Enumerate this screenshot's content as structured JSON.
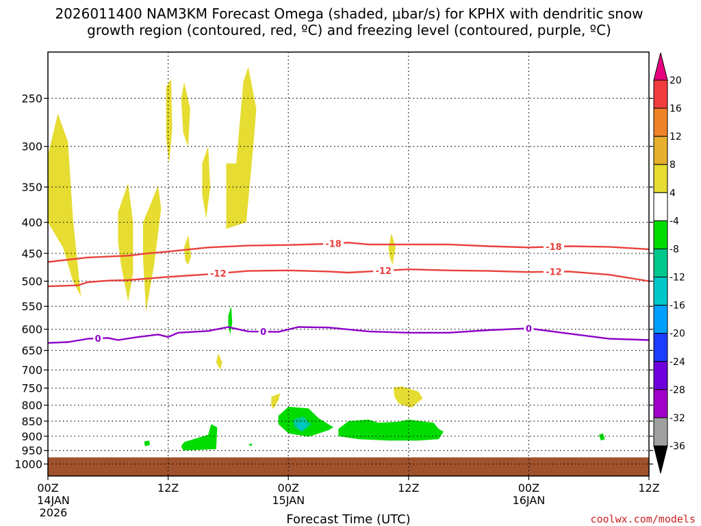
{
  "chart_data": {
    "type": "heatmap",
    "title_lines": [
      "2026011400 NAM3KM Forecast Omega (shaded, μbar/s) for KPHX with dendritic snow",
      "growth region (contoured, red, ºC) and freezing level (contoured, purple, ºC)"
    ],
    "xlabel": "Forecast Time (UTC)",
    "ylabel": "",
    "credit": "coolwx.com/models",
    "x_range_hours": [
      0,
      60
    ],
    "y_levels_hpa": [
      250,
      300,
      350,
      400,
      450,
      500,
      550,
      600,
      650,
      700,
      750,
      800,
      850,
      900,
      950,
      1000
    ],
    "y_axis": "log-pressure",
    "x_ticks": [
      {
        "hour": 0,
        "lines": [
          "00Z",
          "14JAN",
          "2026"
        ]
      },
      {
        "hour": 12,
        "lines": [
          "12Z"
        ]
      },
      {
        "hour": 24,
        "lines": [
          "00Z",
          "15JAN"
        ]
      },
      {
        "hour": 36,
        "lines": [
          "12Z"
        ]
      },
      {
        "hour": 48,
        "lines": [
          "00Z",
          "16JAN"
        ]
      },
      {
        "hour": 60,
        "lines": [
          "12Z"
        ]
      }
    ],
    "grid": true,
    "colorbar": {
      "labels": [
        "20",
        "16",
        "12",
        "8",
        "4",
        "-4",
        "-8",
        "-12",
        "-16",
        "-20",
        "-24",
        "-28",
        "-32",
        "-36"
      ],
      "bins": [
        {
          "from": 16,
          "to": 20,
          "color": "#f03c3c"
        },
        {
          "from": 12,
          "to": 16,
          "color": "#f08228"
        },
        {
          "from": 8,
          "to": 12,
          "color": "#e6af2d"
        },
        {
          "from": 4,
          "to": 8,
          "color": "#e6dc32"
        },
        {
          "from": -4,
          "to": 4,
          "color": "#ffffff"
        },
        {
          "from": -8,
          "to": -4,
          "color": "#00dc00"
        },
        {
          "from": -12,
          "to": -8,
          "color": "#00c88c"
        },
        {
          "from": -16,
          "to": -12,
          "color": "#00c8c8"
        },
        {
          "from": -20,
          "to": -16,
          "color": "#00a0ff"
        },
        {
          "from": -24,
          "to": -20,
          "color": "#1e3cff"
        },
        {
          "from": -28,
          "to": -24,
          "color": "#6e00dc"
        },
        {
          "from": -32,
          "to": -28,
          "color": "#a000c8"
        },
        {
          "from": -36,
          "to": -32,
          "color": "#a0a0a0"
        }
      ],
      "over_color": "#e6007d",
      "under_color": "#000000"
    },
    "ground_color": "#a0522d",
    "ground_top_hpa": 975,
    "contours": [
      {
        "label": "-18",
        "color": "#e8413c",
        "points": [
          [
            0,
            465
          ],
          [
            4,
            457
          ],
          [
            8,
            454
          ],
          [
            10,
            450
          ],
          [
            12,
            447
          ],
          [
            16,
            440
          ],
          [
            20,
            437
          ],
          [
            24,
            436
          ],
          [
            28,
            434
          ],
          [
            30,
            432
          ],
          [
            32,
            435
          ],
          [
            36,
            435
          ],
          [
            40,
            435
          ],
          [
            44,
            438
          ],
          [
            48,
            440
          ],
          [
            52,
            438
          ],
          [
            56,
            439
          ],
          [
            60,
            443
          ]
        ],
        "label_hours": [
          28.5,
          50.5
        ]
      },
      {
        "label": "-12",
        "color": "#e8413c",
        "points": [
          [
            0,
            510
          ],
          [
            3,
            508
          ],
          [
            4,
            502
          ],
          [
            6,
            499
          ],
          [
            8,
            498
          ],
          [
            12,
            492
          ],
          [
            16,
            487
          ],
          [
            20,
            481
          ],
          [
            24,
            480
          ],
          [
            28,
            482
          ],
          [
            30,
            484
          ],
          [
            32,
            482
          ],
          [
            36,
            478
          ],
          [
            40,
            480
          ],
          [
            44,
            481
          ],
          [
            48,
            483
          ],
          [
            52,
            482
          ],
          [
            56,
            488
          ],
          [
            60,
            500
          ]
        ],
        "label_hours": [
          17,
          33.5,
          50.5
        ]
      },
      {
        "label": "0",
        "color": "#8c00c8",
        "points": [
          [
            0,
            632
          ],
          [
            2,
            630
          ],
          [
            4,
            622
          ],
          [
            6,
            620
          ],
          [
            7,
            625
          ],
          [
            9,
            618
          ],
          [
            11,
            612
          ],
          [
            12,
            618
          ],
          [
            13,
            608
          ],
          [
            16,
            604
          ],
          [
            18,
            595
          ],
          [
            20,
            605
          ],
          [
            23,
            606
          ],
          [
            25,
            595
          ],
          [
            28,
            596
          ],
          [
            32,
            605
          ],
          [
            36,
            608
          ],
          [
            40,
            608
          ],
          [
            44,
            602
          ],
          [
            48,
            598
          ],
          [
            52,
            610
          ],
          [
            56,
            622
          ],
          [
            60,
            625
          ]
        ],
        "label_hours": [
          5,
          21.5,
          48
        ]
      }
    ],
    "shaded_regions": [
      {
        "value_bin": "4 to 8",
        "color": "#e6dc32",
        "outline": [
          [
            0,
            310
          ],
          [
            1,
            265
          ],
          [
            2,
            295
          ],
          [
            2.5,
            395
          ],
          [
            3.3,
            530
          ],
          [
            2.5,
            500
          ],
          [
            1.5,
            440
          ],
          [
            0,
            400
          ]
        ]
      },
      {
        "value_bin": "4 to 8",
        "color": "#e6dc32",
        "outline": [
          [
            7,
            385
          ],
          [
            8,
            345
          ],
          [
            8.5,
            400
          ],
          [
            8.5,
            485
          ],
          [
            8,
            540
          ],
          [
            7.3,
            470
          ],
          [
            7,
            430
          ]
        ]
      },
      {
        "value_bin": "4 to 8",
        "color": "#e6dc32",
        "outline": [
          [
            9.5,
            400
          ],
          [
            11,
            348
          ],
          [
            11.3,
            380
          ],
          [
            10.6,
            470
          ],
          [
            9.8,
            560
          ],
          [
            9.5,
            460
          ]
        ]
      },
      {
        "value_bin": "4 to 8",
        "color": "#e6dc32",
        "outline": [
          [
            11.8,
            240
          ],
          [
            12.3,
            232
          ],
          [
            12.4,
            280
          ],
          [
            12.1,
            320
          ],
          [
            11.8,
            290
          ]
        ]
      },
      {
        "value_bin": "4 to 8",
        "color": "#e6dc32",
        "outline": [
          [
            13.3,
            250
          ],
          [
            13.6,
            235
          ],
          [
            14.2,
            260
          ],
          [
            14,
            300
          ],
          [
            13.5,
            285
          ]
        ]
      },
      {
        "value_bin": "4 to 8",
        "color": "#e6dc32",
        "outline": [
          [
            15.4,
            320
          ],
          [
            16,
            300
          ],
          [
            16.2,
            350
          ],
          [
            15.8,
            395
          ],
          [
            15.4,
            360
          ]
        ]
      },
      {
        "value_bin": "4 to 8",
        "color": "#e6dc32",
        "outline": [
          [
            17.8,
            320
          ],
          [
            18.8,
            320
          ],
          [
            19.5,
            235
          ],
          [
            20,
            222
          ],
          [
            20.8,
            260
          ],
          [
            20.5,
            300
          ],
          [
            19.8,
            400
          ],
          [
            17.8,
            410
          ]
        ]
      },
      {
        "value_bin": "4 to 8",
        "color": "#e6dc32",
        "outline": [
          [
            13.6,
            440
          ],
          [
            14,
            420
          ],
          [
            14.3,
            455
          ],
          [
            14,
            470
          ],
          [
            13.7,
            462
          ]
        ]
      },
      {
        "value_bin": "4 to 8",
        "color": "#e6dc32",
        "outline": [
          [
            34,
            440
          ],
          [
            34.3,
            417
          ],
          [
            34.7,
            440
          ],
          [
            34.4,
            470
          ],
          [
            34.1,
            455
          ]
        ]
      },
      {
        "value_bin": "4 to 8",
        "color": "#e6dc32",
        "outline": [
          [
            16.8,
            680
          ],
          [
            17,
            658
          ],
          [
            17.4,
            680
          ],
          [
            17.2,
            700
          ]
        ]
      },
      {
        "value_bin": "4 to 8",
        "color": "#e6dc32",
        "outline": [
          [
            22.3,
            775
          ],
          [
            23.2,
            765
          ],
          [
            23,
            785
          ],
          [
            22.5,
            812
          ],
          [
            22.3,
            800
          ]
        ]
      },
      {
        "value_bin": "4 to 8",
        "color": "#e6dc32",
        "outline": [
          [
            34.5,
            748
          ],
          [
            35.3,
            745
          ],
          [
            37,
            760
          ],
          [
            37.4,
            780
          ],
          [
            36.3,
            808
          ],
          [
            35,
            795
          ],
          [
            34.6,
            775
          ]
        ]
      },
      {
        "value_bin": "-8 to -4",
        "color": "#00dc00",
        "outline": [
          [
            18,
            570
          ],
          [
            18.3,
            550
          ],
          [
            18.4,
            585
          ],
          [
            18.2,
            612
          ],
          [
            18,
            590
          ]
        ]
      },
      {
        "value_bin": "-8 to -4",
        "color": "#00dc00",
        "outline": [
          [
            13.6,
            920
          ],
          [
            16,
            895
          ],
          [
            16.3,
            860
          ],
          [
            16.9,
            870
          ],
          [
            16.8,
            945
          ],
          [
            13.5,
            950
          ],
          [
            13.3,
            935
          ]
        ]
      },
      {
        "value_bin": "-8 to -4",
        "color": "#00dc00",
        "outline": [
          [
            9.6,
            918
          ],
          [
            10.1,
            915
          ],
          [
            10.2,
            930
          ],
          [
            9.7,
            935
          ]
        ]
      },
      {
        "value_bin": "-8 to -4",
        "color": "#00dc00",
        "outline": [
          [
            20,
            928
          ],
          [
            20.4,
            925
          ],
          [
            20.3,
            935
          ]
        ]
      },
      {
        "value_bin": "-8 to -4",
        "color": "#00dc00",
        "outline": [
          [
            23,
            833
          ],
          [
            24,
            805
          ],
          [
            26,
            810
          ],
          [
            27,
            840
          ],
          [
            28.5,
            870
          ],
          [
            28,
            880
          ],
          [
            26,
            902
          ],
          [
            24,
            890
          ],
          [
            23,
            860
          ]
        ]
      },
      {
        "value_bin": "-8 to -4",
        "color": "#00dc00",
        "outline": [
          [
            29,
            875
          ],
          [
            30,
            850
          ],
          [
            32,
            845
          ],
          [
            33,
            855
          ],
          [
            35,
            852
          ],
          [
            36,
            845
          ],
          [
            38.5,
            855
          ],
          [
            39,
            875
          ],
          [
            39.5,
            885
          ],
          [
            39,
            910
          ],
          [
            37,
            915
          ],
          [
            34,
            915
          ],
          [
            31,
            910
          ],
          [
            29,
            900
          ]
        ]
      },
      {
        "value_bin": "-8 to -4",
        "color": "#00dc00",
        "outline": [
          [
            55,
            895
          ],
          [
            55.4,
            890
          ],
          [
            55.6,
            910
          ],
          [
            55.2,
            915
          ]
        ]
      },
      {
        "value_bin": "-12 to -8",
        "color": "#00c88c",
        "outline": [
          [
            24.5,
            845
          ],
          [
            25.5,
            835
          ],
          [
            26.3,
            860
          ],
          [
            25.4,
            885
          ],
          [
            24.6,
            870
          ]
        ]
      },
      {
        "value_bin": "-16 to -12",
        "color": "#00c8c8",
        "outline": [
          [
            24.9,
            855
          ],
          [
            25.6,
            850
          ],
          [
            25.9,
            865
          ],
          [
            25.3,
            880
          ],
          [
            24.9,
            870
          ]
        ]
      }
    ]
  }
}
